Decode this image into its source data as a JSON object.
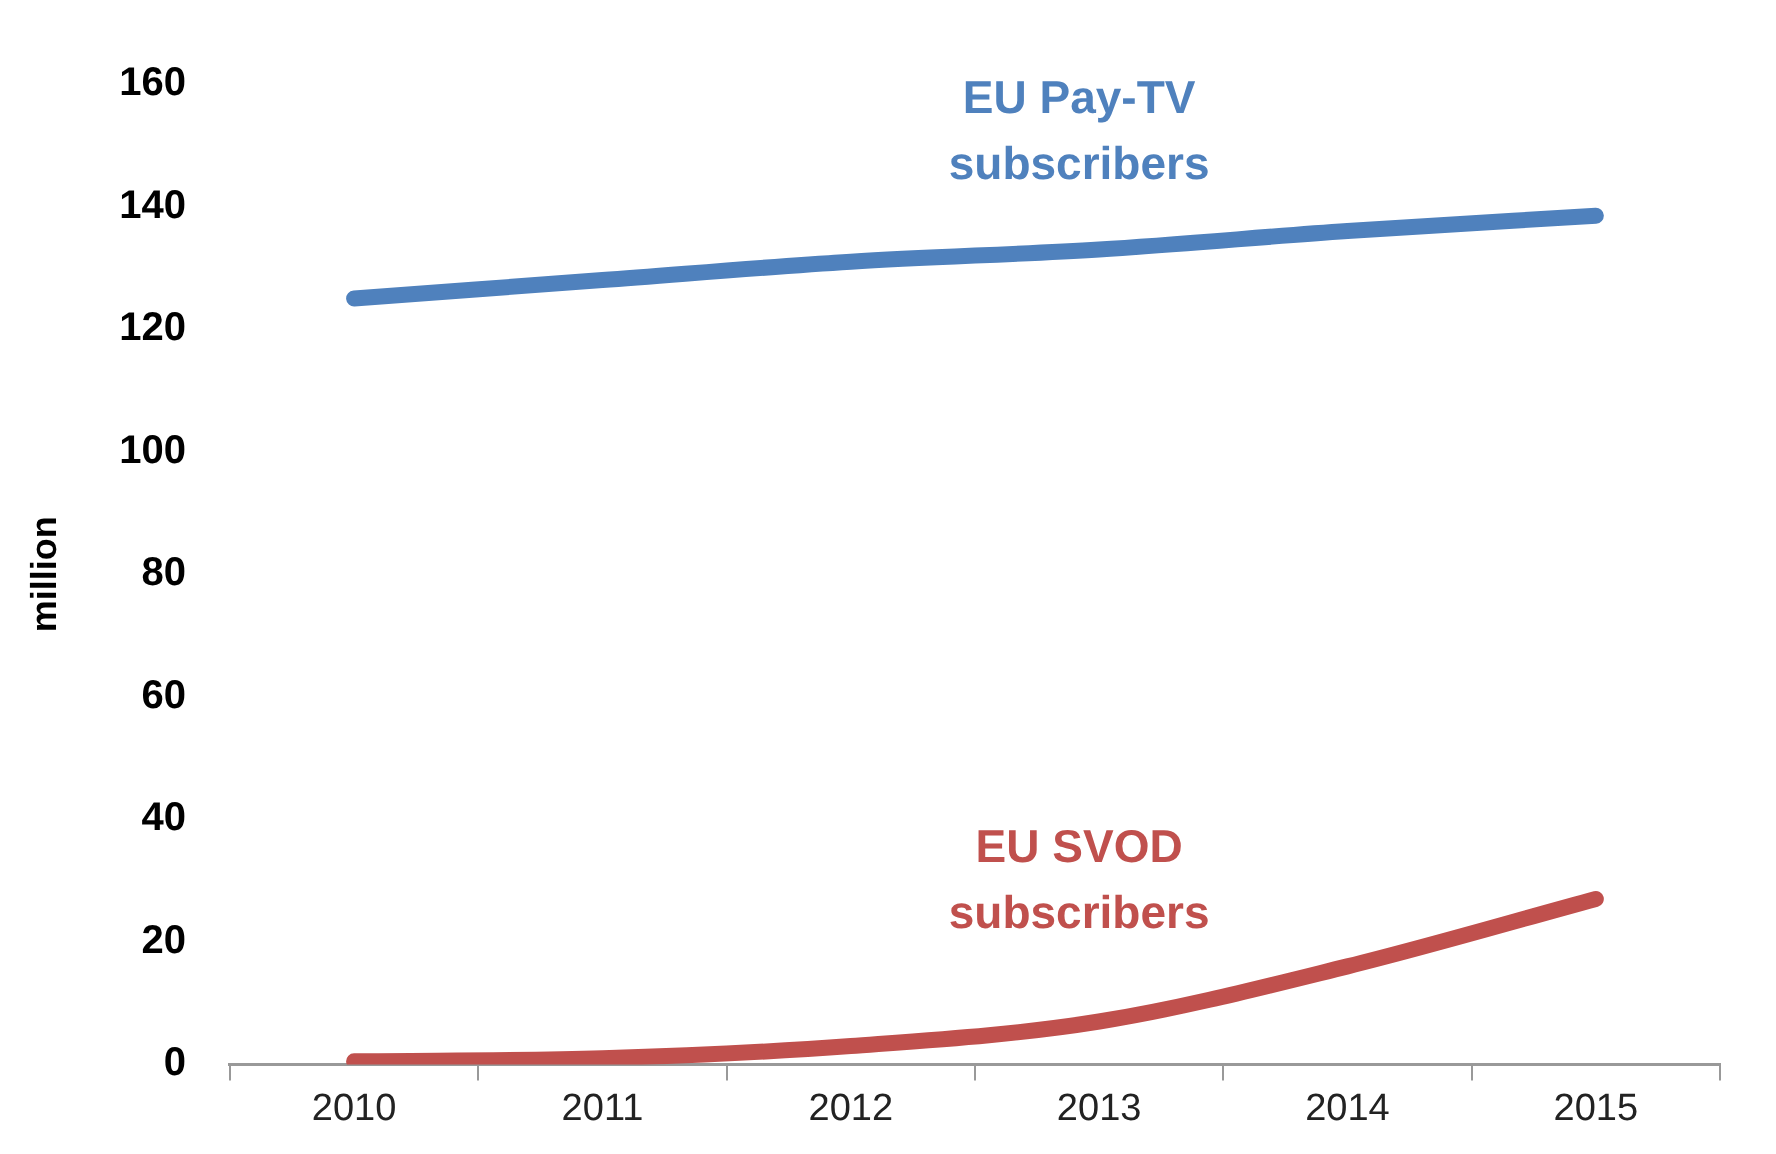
{
  "chart_data": {
    "type": "line",
    "ylabel": "million",
    "categories": [
      "2010",
      "2011",
      "2012",
      "2013",
      "2014",
      "2015"
    ],
    "series": [
      {
        "name": "EU Pay-TV subscribers",
        "color": "#4f81bd",
        "values": [
          125,
          128,
          131,
          133,
          136,
          138.5
        ]
      },
      {
        "name": "EU SVOD subscribers",
        "color": "#c0504d",
        "values": [
          0.5,
          1,
          3,
          7,
          16,
          27
        ]
      }
    ],
    "ylim": [
      0,
      160
    ],
    "yticks": [
      0,
      20,
      40,
      60,
      80,
      100,
      120,
      140,
      160
    ],
    "grid": false,
    "legend": false,
    "marker": "none",
    "line_style": "solid"
  }
}
